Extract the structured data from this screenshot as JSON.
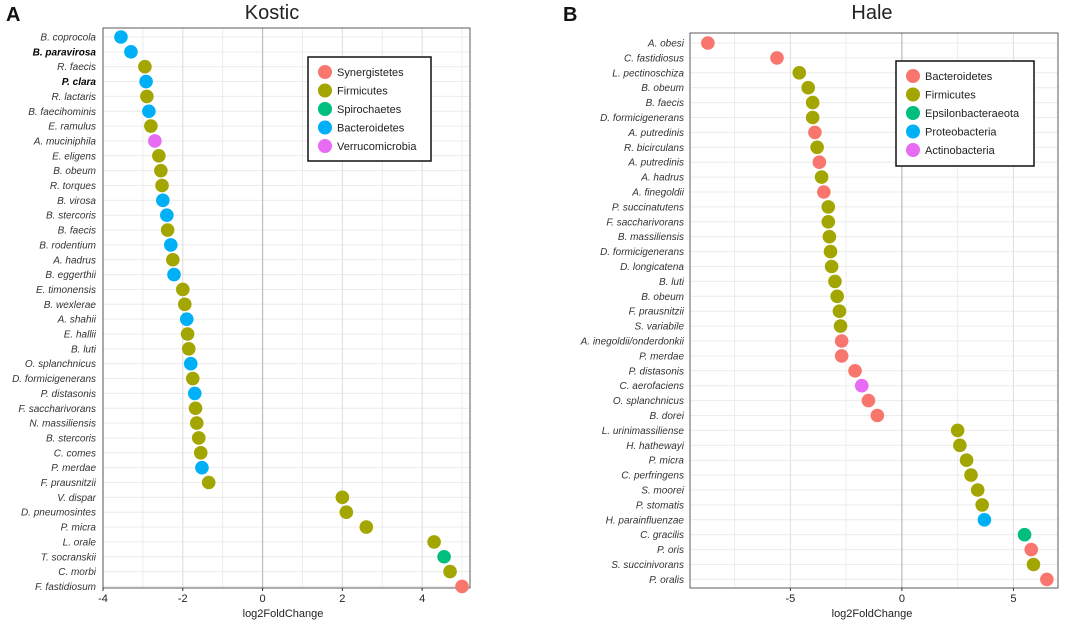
{
  "chart_data": [
    {
      "type": "scatter",
      "panel_label": "A",
      "title": "Kostic",
      "xlabel": "log2FoldChange",
      "ylabel": "",
      "xlim": [
        -4,
        5.2
      ],
      "xticks": [
        "-4",
        "-2",
        "0",
        "2",
        "4"
      ],
      "legend_position": "top-right",
      "legend": [
        {
          "name": "Synergistetes",
          "color": "#F8766D"
        },
        {
          "name": "Firmicutes",
          "color": "#A3A500"
        },
        {
          "name": "Spirochaetes",
          "color": "#00BF7D"
        },
        {
          "name": "Bacteroidetes",
          "color": "#00B0F6"
        },
        {
          "name": "Verrucomicrobia",
          "color": "#E76BF3"
        }
      ],
      "points": [
        {
          "label": "B. coprocola",
          "x": -3.55,
          "group": "Bacteroidetes"
        },
        {
          "label": "B. paravirosa",
          "x": -3.3,
          "group": "Bacteroidetes",
          "bold": true
        },
        {
          "label": "R. faecis",
          "x": -2.95,
          "group": "Firmicutes"
        },
        {
          "label": "P. clara",
          "x": -2.92,
          "group": "Bacteroidetes",
          "bold": true
        },
        {
          "label": "R. lactaris",
          "x": -2.9,
          "group": "Firmicutes"
        },
        {
          "label": "B. faecihominis",
          "x": -2.85,
          "group": "Bacteroidetes"
        },
        {
          "label": "E. ramulus",
          "x": -2.8,
          "group": "Firmicutes"
        },
        {
          "label": "A. muciniphila",
          "x": -2.7,
          "group": "Verrucomicrobia"
        },
        {
          "label": "E. eligens",
          "x": -2.6,
          "group": "Firmicutes"
        },
        {
          "label": "B. obeum",
          "x": -2.55,
          "group": "Firmicutes"
        },
        {
          "label": "R. torques",
          "x": -2.52,
          "group": "Firmicutes"
        },
        {
          "label": "B. virosa",
          "x": -2.5,
          "group": "Bacteroidetes"
        },
        {
          "label": "B. stercoris",
          "x": -2.4,
          "group": "Bacteroidetes"
        },
        {
          "label": "B. faecis",
          "x": -2.38,
          "group": "Firmicutes"
        },
        {
          "label": "B. rodentium",
          "x": -2.3,
          "group": "Bacteroidetes"
        },
        {
          "label": "A. hadrus",
          "x": -2.25,
          "group": "Firmicutes"
        },
        {
          "label": "B. eggerthii",
          "x": -2.22,
          "group": "Bacteroidetes"
        },
        {
          "label": "E. timonensis",
          "x": -2.0,
          "group": "Firmicutes"
        },
        {
          "label": "B. wexlerae",
          "x": -1.95,
          "group": "Firmicutes"
        },
        {
          "label": "A. shahii",
          "x": -1.9,
          "group": "Bacteroidetes"
        },
        {
          "label": "E. hallii",
          "x": -1.88,
          "group": "Firmicutes"
        },
        {
          "label": "B. luti",
          "x": -1.85,
          "group": "Firmicutes"
        },
        {
          "label": "O. splanchnicus",
          "x": -1.8,
          "group": "Bacteroidetes"
        },
        {
          "label": "D. formicigenerans",
          "x": -1.75,
          "group": "Firmicutes"
        },
        {
          "label": "P. distasonis",
          "x": -1.7,
          "group": "Bacteroidetes"
        },
        {
          "label": "F. saccharivorans",
          "x": -1.68,
          "group": "Firmicutes"
        },
        {
          "label": "N. massiliensis",
          "x": -1.65,
          "group": "Firmicutes"
        },
        {
          "label": "B. stercoris",
          "x": -1.6,
          "group": "Firmicutes"
        },
        {
          "label": "C. comes",
          "x": -1.55,
          "group": "Firmicutes"
        },
        {
          "label": "P. merdae",
          "x": -1.52,
          "group": "Bacteroidetes"
        },
        {
          "label": "F. prausnitzii",
          "x": -1.35,
          "group": "Firmicutes"
        },
        {
          "label": "V. dispar",
          "x": 2.0,
          "group": "Firmicutes"
        },
        {
          "label": "D. pneumosintes",
          "x": 2.1,
          "group": "Firmicutes"
        },
        {
          "label": "P. micra",
          "x": 2.6,
          "group": "Firmicutes"
        },
        {
          "label": "L. orale",
          "x": 4.3,
          "group": "Firmicutes"
        },
        {
          "label": "T. socranskii",
          "x": 4.55,
          "group": "Spirochaetes"
        },
        {
          "label": "C. morbi",
          "x": 4.7,
          "group": "Firmicutes"
        },
        {
          "label": "F. fastidiosum",
          "x": 5.0,
          "group": "Synergistetes"
        }
      ]
    },
    {
      "type": "scatter",
      "panel_label": "B",
      "title": "Hale",
      "xlabel": "log2FoldChange",
      "ylabel": "",
      "xlim": [
        -9.5,
        7.0
      ],
      "xticks": [
        "-5",
        "0",
        "5"
      ],
      "legend_position": "top-right",
      "legend": [
        {
          "name": "Bacteroidetes",
          "color": "#F8766D"
        },
        {
          "name": "Firmicutes",
          "color": "#A3A500"
        },
        {
          "name": "Epsilonbacteraeota",
          "color": "#00BF7D"
        },
        {
          "name": "Proteobacteria",
          "color": "#00B0F6"
        },
        {
          "name": "Actinobacteria",
          "color": "#E76BF3"
        }
      ],
      "points": [
        {
          "label": "A. obesi",
          "x": -8.7,
          "group": "Bacteroidetes"
        },
        {
          "label": "C. fastidiosus",
          "x": -5.6,
          "group": "Bacteroidetes"
        },
        {
          "label": "L. pectinoschiza",
          "x": -4.6,
          "group": "Firmicutes"
        },
        {
          "label": "B. obeum",
          "x": -4.2,
          "group": "Firmicutes"
        },
        {
          "label": "B. faecis",
          "x": -4.0,
          "group": "Firmicutes"
        },
        {
          "label": "D. formicigenerans",
          "x": -4.0,
          "group": "Firmicutes"
        },
        {
          "label": "A. putredinis",
          "x": -3.9,
          "group": "Bacteroidetes"
        },
        {
          "label": "R. bicirculans",
          "x": -3.8,
          "group": "Firmicutes"
        },
        {
          "label": "A. putredinis",
          "x": -3.7,
          "group": "Bacteroidetes"
        },
        {
          "label": "A. hadrus",
          "x": -3.6,
          "group": "Firmicutes"
        },
        {
          "label": "A. finegoldii",
          "x": -3.5,
          "group": "Bacteroidetes"
        },
        {
          "label": "P. succinatutens",
          "x": -3.3,
          "group": "Firmicutes"
        },
        {
          "label": "F. saccharivorans",
          "x": -3.3,
          "group": "Firmicutes"
        },
        {
          "label": "B. massiliensis",
          "x": -3.25,
          "group": "Firmicutes"
        },
        {
          "label": "D. formicigenerans",
          "x": -3.2,
          "group": "Firmicutes"
        },
        {
          "label": "D. longicatena",
          "x": -3.15,
          "group": "Firmicutes"
        },
        {
          "label": "B. luti",
          "x": -3.0,
          "group": "Firmicutes"
        },
        {
          "label": "B. obeum",
          "x": -2.9,
          "group": "Firmicutes"
        },
        {
          "label": "F. prausnitzii",
          "x": -2.8,
          "group": "Firmicutes"
        },
        {
          "label": "S. variabile",
          "x": -2.75,
          "group": "Firmicutes"
        },
        {
          "label": "A. inegoldii/onderdonkii",
          "x": -2.7,
          "group": "Bacteroidetes"
        },
        {
          "label": "P. merdae",
          "x": -2.7,
          "group": "Bacteroidetes"
        },
        {
          "label": "P. distasonis",
          "x": -2.1,
          "group": "Bacteroidetes"
        },
        {
          "label": "C. aerofaciens",
          "x": -1.8,
          "group": "Actinobacteria"
        },
        {
          "label": "O. splanchnicus",
          "x": -1.5,
          "group": "Bacteroidetes"
        },
        {
          "label": "B. dorei",
          "x": -1.1,
          "group": "Bacteroidetes"
        },
        {
          "label": "L. urinimassiliense",
          "x": 2.5,
          "group": "Firmicutes"
        },
        {
          "label": "H. hathewayi",
          "x": 2.6,
          "group": "Firmicutes"
        },
        {
          "label": "P. micra",
          "x": 2.9,
          "group": "Firmicutes"
        },
        {
          "label": "C. perfringens",
          "x": 3.1,
          "group": "Firmicutes"
        },
        {
          "label": "S. moorei",
          "x": 3.4,
          "group": "Firmicutes"
        },
        {
          "label": "P. stomatis",
          "x": 3.6,
          "group": "Firmicutes"
        },
        {
          "label": "H. parainfluenzae",
          "x": 3.7,
          "group": "Proteobacteria"
        },
        {
          "label": "C. gracilis",
          "x": 5.5,
          "group": "Epsilonbacteraeota"
        },
        {
          "label": "P. oris",
          "x": 5.8,
          "group": "Bacteroidetes"
        },
        {
          "label": "S. succinivorans",
          "x": 5.9,
          "group": "Firmicutes"
        },
        {
          "label": "P. oralis",
          "x": 6.5,
          "group": "Bacteroidetes"
        }
      ]
    }
  ]
}
